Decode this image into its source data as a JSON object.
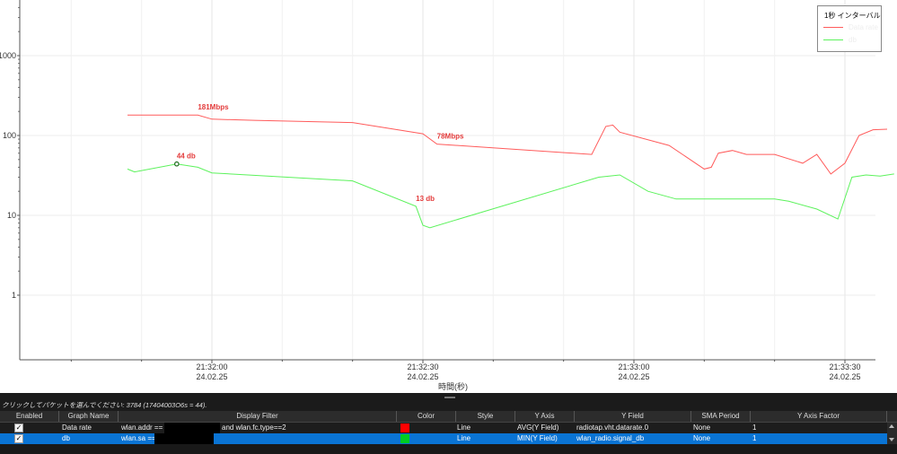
{
  "chart_data": {
    "type": "line",
    "xlabel": "時間(秒)",
    "yscale": "log",
    "ylim": [
      0.1,
      10000
    ],
    "yticks": [
      1,
      10,
      100,
      1000
    ],
    "ytick_labels": [
      "1",
      "10",
      "100",
      "1000"
    ],
    "xticks": [
      {
        "t": "21:32:00",
        "date": "24.02.25"
      },
      {
        "t": "21:32:30",
        "date": "24.02.25"
      },
      {
        "t": "21:33:00",
        "date": "24.02.25"
      },
      {
        "t": "21:33:30",
        "date": "24.02.25"
      }
    ],
    "legend_title": "1秒 インターバル",
    "legend_position": "top-right",
    "grid": true,
    "series": [
      {
        "name": "Data rate",
        "color": "#ff5b5b",
        "points": [
          [
            "21:31:48",
            180
          ],
          [
            "21:31:58",
            180
          ],
          [
            "21:32:00",
            160
          ],
          [
            "21:32:06",
            155
          ],
          [
            "21:32:20",
            145
          ],
          [
            "21:32:30",
            105
          ],
          [
            "21:32:32",
            78
          ],
          [
            "21:32:54",
            58
          ],
          [
            "21:32:56",
            130
          ],
          [
            "21:32:57",
            135
          ],
          [
            "21:32:58",
            110
          ],
          [
            "21:33:05",
            75
          ],
          [
            "21:33:10",
            38
          ],
          [
            "21:33:11",
            40
          ],
          [
            "21:33:12",
            60
          ],
          [
            "21:33:14",
            65
          ],
          [
            "21:33:16",
            58
          ],
          [
            "21:33:20",
            58
          ],
          [
            "21:33:24",
            45
          ],
          [
            "21:33:26",
            58
          ],
          [
            "21:33:28",
            33
          ],
          [
            "21:33:30",
            45
          ],
          [
            "21:33:32",
            100
          ],
          [
            "21:33:34",
            118
          ],
          [
            "21:33:36",
            120
          ]
        ]
      },
      {
        "name": "db",
        "color": "#5cf25c",
        "points": [
          [
            "21:31:48",
            38
          ],
          [
            "21:31:49",
            35
          ],
          [
            "21:31:55",
            44
          ],
          [
            "21:31:58",
            40
          ],
          [
            "21:32:00",
            34
          ],
          [
            "21:32:20",
            27
          ],
          [
            "21:32:29",
            13
          ],
          [
            "21:32:30",
            7.5
          ],
          [
            "21:32:31",
            7
          ],
          [
            "21:32:55",
            30
          ],
          [
            "21:32:58",
            32
          ],
          [
            "21:33:02",
            20
          ],
          [
            "21:33:06",
            16
          ],
          [
            "21:33:20",
            16
          ],
          [
            "21:33:22",
            15
          ],
          [
            "21:33:26",
            12
          ],
          [
            "21:33:29",
            9
          ],
          [
            "21:33:31",
            30
          ],
          [
            "21:33:33",
            32
          ],
          [
            "21:33:35",
            31
          ],
          [
            "21:33:37",
            33
          ]
        ]
      }
    ],
    "annotations": [
      {
        "text": "181Mbps",
        "x": "21:31:58",
        "y": 181,
        "series": "Data rate"
      },
      {
        "text": "78Mbps",
        "x": "21:32:32",
        "y": 78,
        "series": "Data rate"
      },
      {
        "text": "44 db",
        "x": "21:31:55",
        "y": 44,
        "series": "db",
        "marker": true
      },
      {
        "text": "13 db",
        "x": "21:32:29",
        "y": 13,
        "series": "db"
      }
    ]
  },
  "status_text": "クリックしてパケットを選んでください: 3784 (17404003O6s = 44).",
  "grid": {
    "columns": [
      "Enabled",
      "Graph Name",
      "Display Filter",
      "Color",
      "Style",
      "Y Axis",
      "Y Field",
      "SMA Period",
      "Y Axis Factor"
    ],
    "rows": [
      {
        "enabled": "✓",
        "name": "Data rate",
        "filter_prefix": "wlan.addr ==",
        "filter_suffix": "and wlan.fc.type==2",
        "color": "#ff0000",
        "style": "Line",
        "y_axis": "AVG(Y Field)",
        "y_field": "radiotap.vht.datarate.0",
        "sma": "None",
        "factor": "1"
      },
      {
        "enabled": "✓",
        "name": "db",
        "filter_prefix": "wlan.sa ==",
        "filter_suffix": "",
        "color": "#00cc22",
        "style": "Line",
        "y_axis": "MIN(Y Field)",
        "y_field": "wlan_radio.signal_db",
        "sma": "None",
        "factor": "1"
      }
    ]
  }
}
